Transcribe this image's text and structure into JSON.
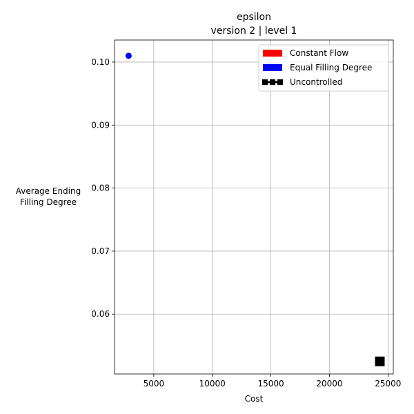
{
  "chart_data": {
    "type": "scatter",
    "title": "epsilon",
    "subtitle": "version 2 | level 1",
    "xlabel": "Cost",
    "ylabel_lines": [
      "Average Ending",
      "Filling Degree"
    ],
    "xlim": [
      1650,
      25450
    ],
    "ylim": [
      0.0505,
      0.1035
    ],
    "x_ticks": [
      5000,
      10000,
      15000,
      20000,
      25000
    ],
    "y_ticks": [
      0.06,
      0.07,
      0.08,
      0.09,
      0.1
    ],
    "y_tick_labels": [
      "0.06",
      "0.07",
      "0.08",
      "0.09",
      "0.10"
    ],
    "grid": true,
    "legend_position": "top-right",
    "legend": [
      {
        "label": "Constant Flow",
        "color": "#ff0000",
        "marker": "patch"
      },
      {
        "label": "Equal Filling Degree",
        "color": "#0000ff",
        "marker": "patch"
      },
      {
        "label": "Uncontrolled",
        "color": "#000000",
        "marker": "square-line"
      }
    ],
    "series": [
      {
        "name": "Equal Filling Degree",
        "color": "#0000ff",
        "marker": "circle",
        "points": [
          {
            "x": 2850,
            "y": 0.101
          }
        ]
      },
      {
        "name": "Uncontrolled",
        "color": "#000000",
        "marker": "square",
        "points": [
          {
            "x": 24300,
            "y": 0.0525
          }
        ]
      }
    ]
  }
}
